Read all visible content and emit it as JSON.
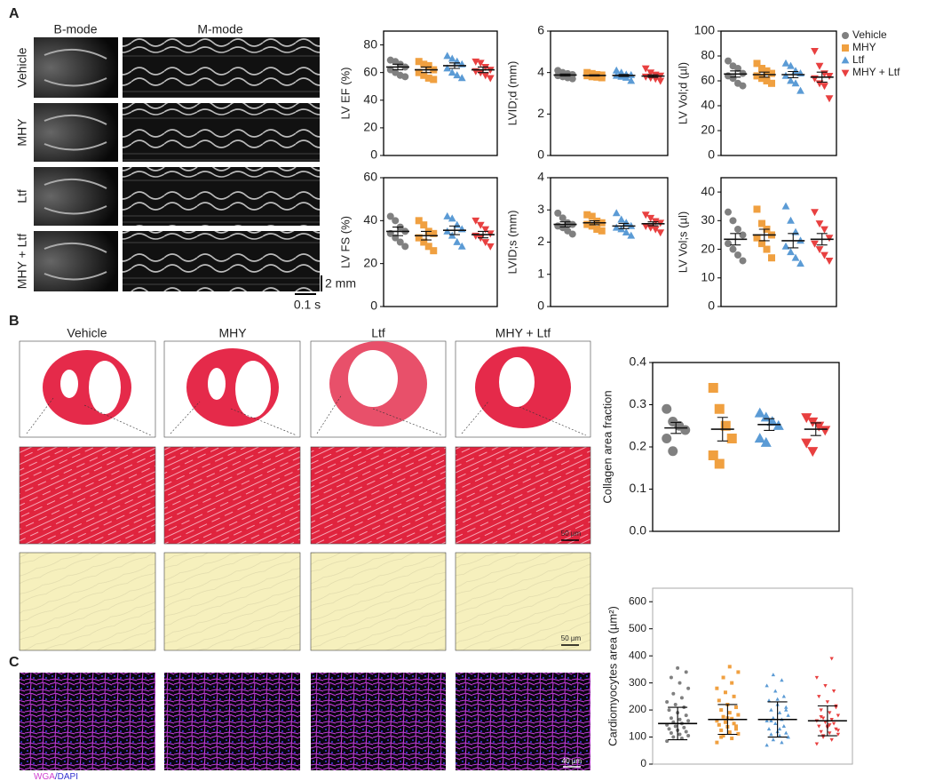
{
  "panel_labels": [
    "A",
    "B",
    "C"
  ],
  "echo": {
    "column_labels": [
      "B-mode",
      "M-mode"
    ],
    "row_labels": [
      "Vehicle",
      "MHY",
      "Ltf",
      "MHY + Ltf"
    ],
    "scale_y": "2 mm",
    "scale_x": "0.1 s"
  },
  "histology": {
    "column_labels": [
      "Vehicle",
      "MHY",
      "Ltf",
      "MHY + Ltf"
    ],
    "scale_bars": [
      "50 µm",
      "50 µm"
    ]
  },
  "wga": {
    "stain_labels": [
      "WGA",
      "/DAPI"
    ],
    "scale_bar": "40 µm"
  },
  "legend": [
    {
      "name": "Vehicle",
      "color": "#808080",
      "marker": "circle"
    },
    {
      "name": "MHY",
      "color": "#f0a040",
      "marker": "square"
    },
    {
      "name": "Ltf",
      "color": "#5b9bd5",
      "marker": "triangle-up"
    },
    {
      "name": "MHY + Ltf",
      "color": "#e84040",
      "marker": "triangle-down"
    }
  ],
  "chart_data": [
    {
      "type": "dotplot",
      "ylabel": "LV EF (%)",
      "ylim": [
        0,
        90
      ],
      "yticks": [
        0,
        20,
        40,
        60,
        80
      ],
      "series": [
        {
          "values": [
            69,
            68,
            66,
            64,
            62,
            60,
            58,
            57
          ],
          "mean": 64,
          "error": 2
        },
        {
          "values": [
            68,
            66,
            65,
            62,
            60,
            58,
            56,
            55
          ],
          "mean": 62,
          "error": 2
        },
        {
          "values": [
            72,
            70,
            68,
            66,
            63,
            60,
            58,
            56
          ],
          "mean": 65,
          "error": 2
        },
        {
          "values": [
            68,
            67,
            64,
            62,
            61,
            60,
            58,
            56
          ],
          "mean": 62,
          "error": 2
        }
      ]
    },
    {
      "type": "dotplot",
      "ylabel": "LVID;d (mm)",
      "ylim": [
        0,
        6
      ],
      "yticks": [
        0,
        2,
        4,
        6
      ],
      "series": [
        {
          "values": [
            4.1,
            4.0,
            3.95,
            3.9,
            3.85,
            3.8,
            3.75,
            3.7
          ],
          "mean": 3.88,
          "error": 0.05
        },
        {
          "values": [
            4.0,
            3.95,
            3.9,
            3.88,
            3.85,
            3.8,
            3.78,
            3.75
          ],
          "mean": 3.86,
          "error": 0.03
        },
        {
          "values": [
            4.1,
            4.0,
            3.9,
            3.88,
            3.85,
            3.8,
            3.75,
            3.6
          ],
          "mean": 3.86,
          "error": 0.05
        },
        {
          "values": [
            4.2,
            4.0,
            3.9,
            3.85,
            3.8,
            3.75,
            3.7,
            3.6
          ],
          "mean": 3.83,
          "error": 0.06
        }
      ]
    },
    {
      "type": "dotplot",
      "ylabel": "LV Vol;d (µl)",
      "ylim": [
        0,
        100
      ],
      "yticks": [
        0,
        20,
        40,
        60,
        80,
        100
      ],
      "series": [
        {
          "values": [
            76,
            72,
            70,
            66,
            64,
            62,
            58,
            56
          ],
          "mean": 65.5,
          "error": 2.5
        },
        {
          "values": [
            74,
            70,
            68,
            66,
            64,
            62,
            60,
            58
          ],
          "mean": 65,
          "error": 2
        },
        {
          "values": [
            74,
            72,
            68,
            66,
            64,
            60,
            58,
            52
          ],
          "mean": 65,
          "error": 2.5
        },
        {
          "values": [
            84,
            72,
            66,
            64,
            62,
            58,
            56,
            46
          ],
          "mean": 63,
          "error": 4
        }
      ]
    },
    {
      "type": "dotplot",
      "ylabel": "LV FS (%)",
      "ylim": [
        0,
        60
      ],
      "yticks": [
        0,
        20,
        40,
        60
      ],
      "series": [
        {
          "values": [
            42,
            40,
            37,
            35,
            34,
            32,
            30,
            28
          ],
          "mean": 35,
          "error": 2
        },
        {
          "values": [
            40,
            38,
            35,
            34,
            32,
            30,
            28,
            26
          ],
          "mean": 33,
          "error": 2
        },
        {
          "values": [
            42,
            41,
            38,
            36,
            35,
            33,
            30,
            28
          ],
          "mean": 35.5,
          "error": 2
        },
        {
          "values": [
            40,
            38,
            36,
            34,
            33,
            32,
            30,
            28
          ],
          "mean": 33.5,
          "error": 1.5
        }
      ]
    },
    {
      "type": "dotplot",
      "ylabel": "LVID;s (mm)",
      "ylim": [
        0,
        4
      ],
      "yticks": [
        0,
        1,
        2,
        3,
        4
      ],
      "series": [
        {
          "values": [
            2.9,
            2.75,
            2.6,
            2.55,
            2.5,
            2.45,
            2.35,
            2.25
          ],
          "mean": 2.55,
          "error": 0.08
        },
        {
          "values": [
            2.85,
            2.8,
            2.65,
            2.6,
            2.55,
            2.5,
            2.4,
            2.35
          ],
          "mean": 2.6,
          "error": 0.06
        },
        {
          "values": [
            2.9,
            2.7,
            2.6,
            2.5,
            2.45,
            2.4,
            2.3,
            2.2
          ],
          "mean": 2.5,
          "error": 0.08
        },
        {
          "values": [
            2.85,
            2.75,
            2.65,
            2.6,
            2.5,
            2.45,
            2.4,
            2.3
          ],
          "mean": 2.57,
          "error": 0.06
        }
      ]
    },
    {
      "type": "dotplot",
      "ylabel": "LV Vol;s (µl)",
      "ylim": [
        0,
        45
      ],
      "yticks": [
        0,
        10,
        20,
        30,
        40
      ],
      "series": [
        {
          "values": [
            33,
            30,
            27,
            25,
            22,
            20,
            18,
            16
          ],
          "mean": 23.5,
          "error": 2
        },
        {
          "values": [
            34,
            29,
            27,
            25,
            24,
            22,
            20,
            17
          ],
          "mean": 25,
          "error": 2
        },
        {
          "values": [
            35,
            30,
            26,
            23,
            21,
            19,
            17,
            15
          ],
          "mean": 23,
          "error": 2.5
        },
        {
          "values": [
            33,
            29,
            27,
            24,
            22,
            20,
            18,
            16
          ],
          "mean": 23.5,
          "error": 2
        }
      ]
    },
    {
      "type": "dotplot",
      "ylabel": "Collagen area fraction",
      "ylim": [
        0,
        0.4
      ],
      "yticks": [
        {
          "value": 0,
          "label": "0.0"
        },
        0.1,
        0.2,
        0.3,
        0.4
      ],
      "series": [
        {
          "values": [
            0.29,
            0.26,
            0.25,
            0.24,
            0.22,
            0.19
          ],
          "mean": 0.245,
          "error": 0.013
        },
        {
          "values": [
            0.34,
            0.29,
            0.25,
            0.22,
            0.18,
            0.16
          ],
          "mean": 0.242,
          "error": 0.028
        },
        {
          "values": [
            0.28,
            0.27,
            0.26,
            0.25,
            0.22,
            0.21
          ],
          "mean": 0.253,
          "error": 0.014
        },
        {
          "values": [
            0.27,
            0.26,
            0.25,
            0.24,
            0.21,
            0.19
          ],
          "mean": 0.242,
          "error": 0.015
        }
      ]
    },
    {
      "type": "dotplot",
      "ylabel": "Cardiomyocytes area (µm²)",
      "ylim": [
        0,
        650
      ],
      "yticks": [
        0,
        100,
        200,
        300,
        400,
        500,
        600
      ],
      "series": [
        {
          "values": [
            85,
            95,
            100,
            105,
            110,
            115,
            120,
            125,
            130,
            135,
            140,
            145,
            150,
            155,
            160,
            165,
            170,
            180,
            190,
            200,
            210,
            220,
            230,
            245,
            260,
            280,
            300,
            320,
            340,
            355
          ],
          "mean": 150,
          "error": 60
        },
        {
          "values": [
            80,
            95,
            105,
            112,
            118,
            125,
            130,
            138,
            145,
            150,
            155,
            160,
            168,
            175,
            182,
            190,
            200,
            210,
            220,
            235,
            250,
            265,
            280,
            300,
            320,
            340,
            360,
            100,
            140,
            170
          ],
          "mean": 165,
          "error": 55
        },
        {
          "values": [
            70,
            80,
            90,
            100,
            105,
            110,
            115,
            120,
            130,
            140,
            150,
            160,
            165,
            170,
            180,
            190,
            200,
            210,
            220,
            235,
            250,
            270,
            290,
            310,
            330,
            100,
            130,
            160,
            200,
            240
          ],
          "mean": 165,
          "error": 65
        },
        {
          "values": [
            75,
            90,
            100,
            110,
            115,
            120,
            130,
            135,
            140,
            150,
            155,
            160,
            165,
            170,
            180,
            190,
            200,
            215,
            230,
            250,
            270,
            290,
            320,
            390,
            105,
            125,
            145,
            175,
            210,
            140
          ],
          "mean": 160,
          "error": 55
        }
      ]
    }
  ]
}
